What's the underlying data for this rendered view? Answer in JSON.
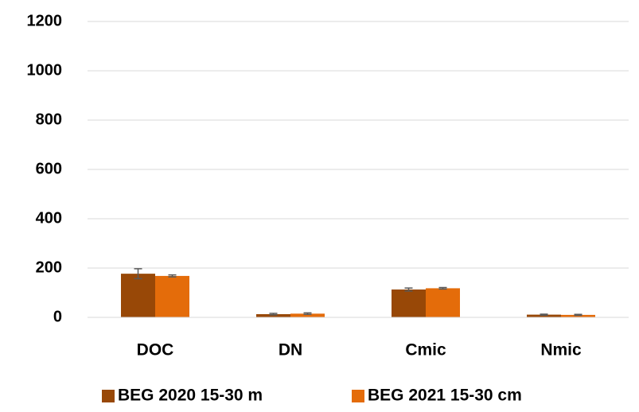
{
  "chart_data": {
    "type": "bar",
    "categories": [
      "DOC",
      "DN",
      "Cmic",
      "Nmic"
    ],
    "series": [
      {
        "name": "BEG 2020 15-30 m",
        "color": "#984807",
        "values": [
          177,
          13,
          113,
          11
        ],
        "errors": [
          20,
          3,
          6,
          2
        ]
      },
      {
        "name": "BEG 2021 15-30 cm",
        "color": "#e46c0a",
        "values": [
          168,
          15,
          118,
          10
        ],
        "errors": [
          4,
          3,
          3,
          2
        ]
      }
    ],
    "ylim": [
      0,
      1200
    ],
    "yticks": [
      0,
      200,
      400,
      600,
      800,
      1000,
      1200
    ],
    "grid": true,
    "legend": "bottom"
  }
}
